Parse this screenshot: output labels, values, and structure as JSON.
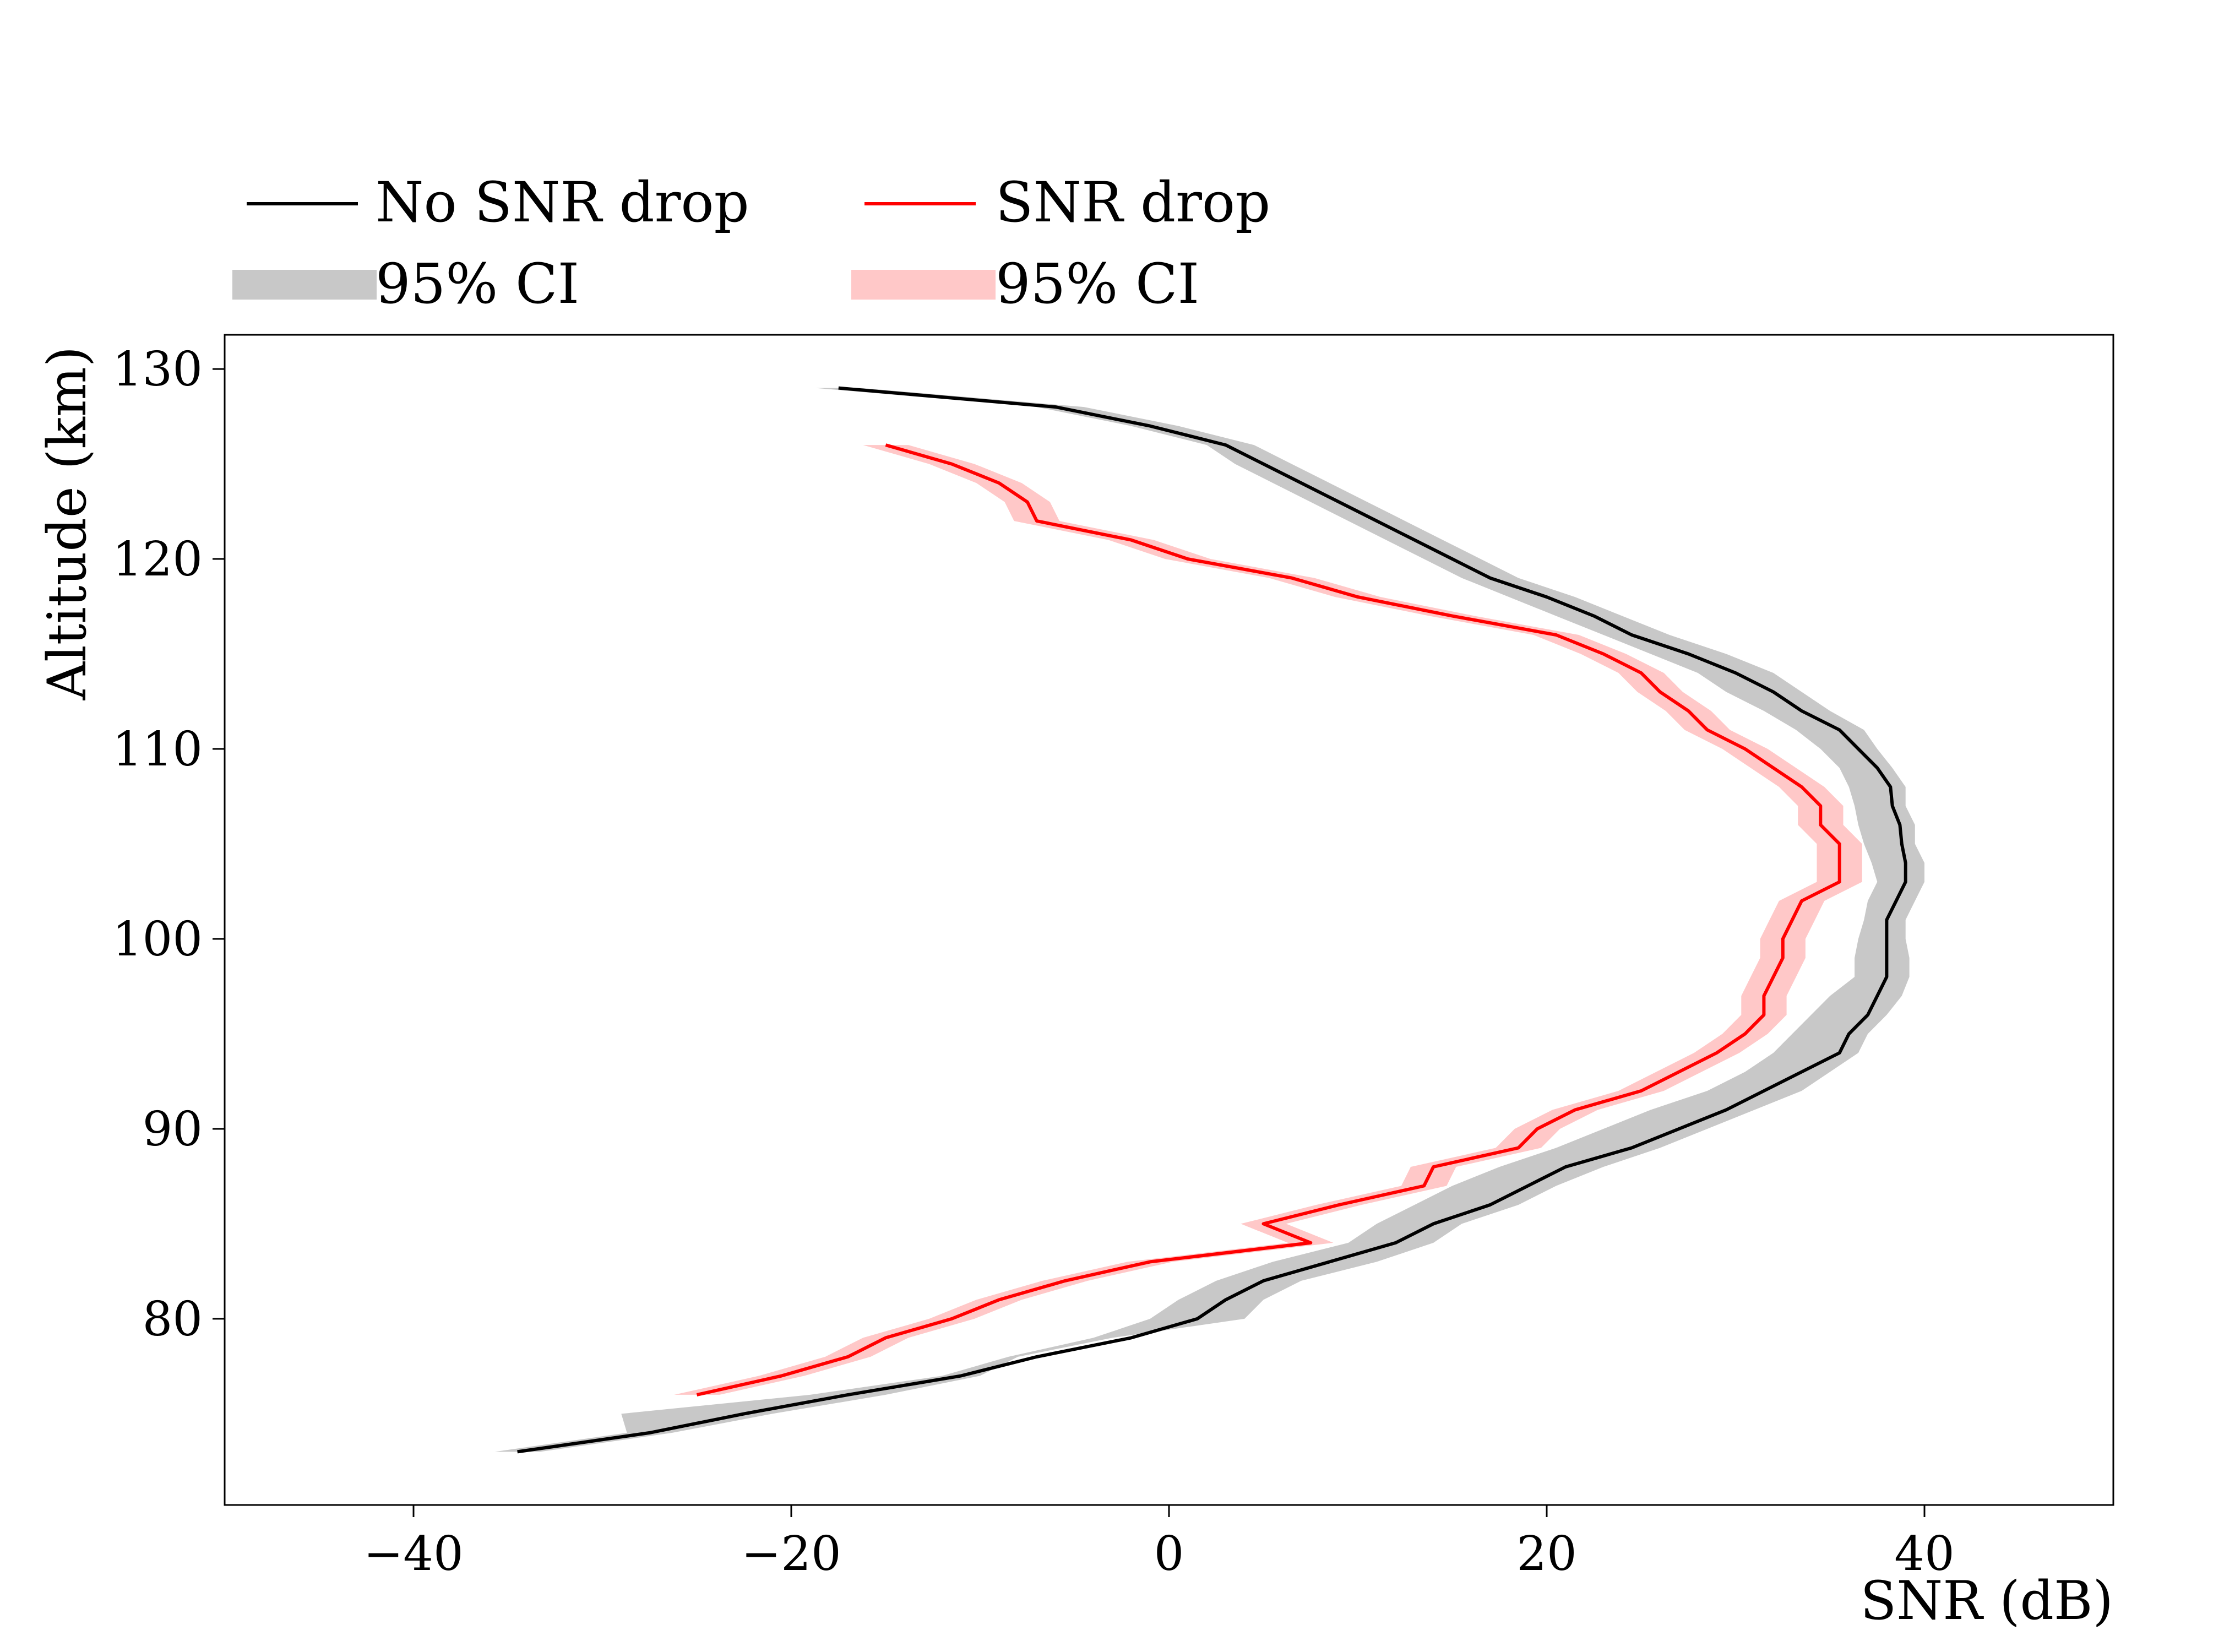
{
  "chart_data": {
    "type": "line",
    "title": "",
    "xlabel": "SNR (dB)",
    "ylabel": "Altitude (km)",
    "xlim": [
      -50,
      50
    ],
    "ylim": [
      70.2,
      131.8
    ],
    "xticks": [
      -40,
      -20,
      0,
      20,
      40
    ],
    "yticks": [
      80,
      90,
      100,
      110,
      120,
      130
    ],
    "xtick_labels": [
      "−40",
      "−20",
      "0",
      "20",
      "40"
    ],
    "ytick_labels": [
      "80",
      "90",
      "100",
      "110",
      "120",
      "130"
    ],
    "grid": false,
    "legend_placement": "top-left, above plot",
    "legend": [
      {
        "label": "No SNR drop",
        "kind": "line",
        "color": "#000000"
      },
      {
        "label": "SNR drop",
        "kind": "line",
        "color": "#ff0000"
      },
      {
        "label": "95% CI",
        "kind": "band",
        "color": "#c8c8c8"
      },
      {
        "label": "95% CI",
        "kind": "band",
        "color": "#ffc8c8"
      }
    ],
    "series": [
      {
        "name": "No SNR drop",
        "color": "#000000",
        "band_color": "#c8c8c8",
        "y": [
          73,
          74,
          75,
          76,
          77,
          78,
          79,
          80,
          81,
          82,
          83,
          84,
          85,
          86,
          87,
          88,
          89,
          90,
          91,
          92,
          93,
          94,
          95,
          96,
          97,
          98,
          99,
          100,
          101,
          102,
          103,
          104,
          105,
          106,
          107,
          108,
          109,
          110,
          111,
          112,
          113,
          114,
          115,
          116,
          117,
          118,
          119,
          120,
          121,
          122,
          123,
          124,
          125,
          126,
          127,
          128,
          129
        ],
        "x": [
          -34.5,
          -27.5,
          -22.5,
          -17,
          -11,
          -7,
          -2,
          1.5,
          3,
          5,
          8.5,
          12,
          14,
          17,
          19,
          21,
          24.5,
          27,
          29.5,
          31.5,
          33.5,
          35.5,
          36,
          37,
          37.5,
          38,
          38,
          38,
          38,
          38.5,
          39,
          39,
          38.8,
          38.7,
          38.3,
          38.2,
          37.5,
          36.5,
          35.5,
          33.5,
          32,
          30,
          27.5,
          24.5,
          22.5,
          20,
          17,
          15,
          13,
          11,
          9,
          7,
          5,
          3,
          -1,
          -6,
          -17.5
        ],
        "lower": [
          null,
          null,
          -29,
          -19,
          -12,
          -8.5,
          -4,
          -1,
          0.5,
          2.5,
          5.5,
          9.5,
          11,
          13,
          15,
          17.5,
          20.5,
          23,
          25.5,
          28.5,
          30.5,
          32,
          33,
          34,
          35,
          36.3,
          36.3,
          36.5,
          36.8,
          37,
          37.5,
          37.2,
          36.8,
          36.5,
          36.3,
          36,
          35.5,
          34.5,
          33.2,
          31.5,
          29.5,
          28,
          25.5,
          23,
          20.5,
          18,
          15.5,
          13.5,
          11.5,
          9.5,
          7.5,
          5.5,
          3.5,
          2,
          -2,
          -7,
          null
        ],
        "upper": [
          null,
          null,
          -21,
          -15,
          -10,
          -8,
          -3,
          4,
          5,
          7,
          11,
          14,
          15.5,
          18.5,
          20.5,
          23,
          26,
          28.5,
          31,
          33.5,
          35,
          36.5,
          37,
          38,
          38.8,
          39.2,
          39.2,
          39,
          39,
          39.5,
          40,
          40,
          39.5,
          39.5,
          39,
          39,
          38.3,
          37.5,
          36.8,
          35,
          33.5,
          32,
          29.5,
          26.5,
          24,
          21.5,
          18.5,
          16.5,
          14.5,
          12.5,
          10.5,
          8.5,
          6.5,
          4.5,
          0.5,
          -4.5,
          null
        ]
      },
      {
        "name": "SNR drop",
        "color": "#ff0000",
        "band_color": "#ffc8c8",
        "y": [
          76,
          77,
          78,
          79,
          80,
          81,
          82,
          83,
          84,
          85,
          86,
          87,
          88,
          89,
          90,
          91,
          92,
          93,
          94,
          95,
          96,
          97,
          98,
          99,
          100,
          101,
          102,
          103,
          104,
          105,
          106,
          107,
          108,
          109,
          110,
          111,
          112,
          113,
          114,
          115,
          116,
          117,
          118,
          119,
          120,
          121,
          122,
          123,
          124,
          125,
          126
        ],
        "x": [
          -25,
          -20.5,
          -17,
          -15,
          -11.5,
          -9,
          -5.5,
          -1,
          7.5,
          5,
          9,
          13.5,
          14,
          18.5,
          19.5,
          21.5,
          25,
          27,
          29,
          30.5,
          31.5,
          31.5,
          32,
          32.5,
          32.5,
          33,
          33.5,
          35.5,
          35.5,
          35.5,
          34.5,
          34.5,
          33.5,
          32,
          30.5,
          28.5,
          27.5,
          26,
          25,
          23,
          20.5,
          15,
          10,
          6.5,
          1,
          -2,
          -7,
          -7.5,
          -9,
          -11.5,
          -15
        ]
      }
    ]
  }
}
